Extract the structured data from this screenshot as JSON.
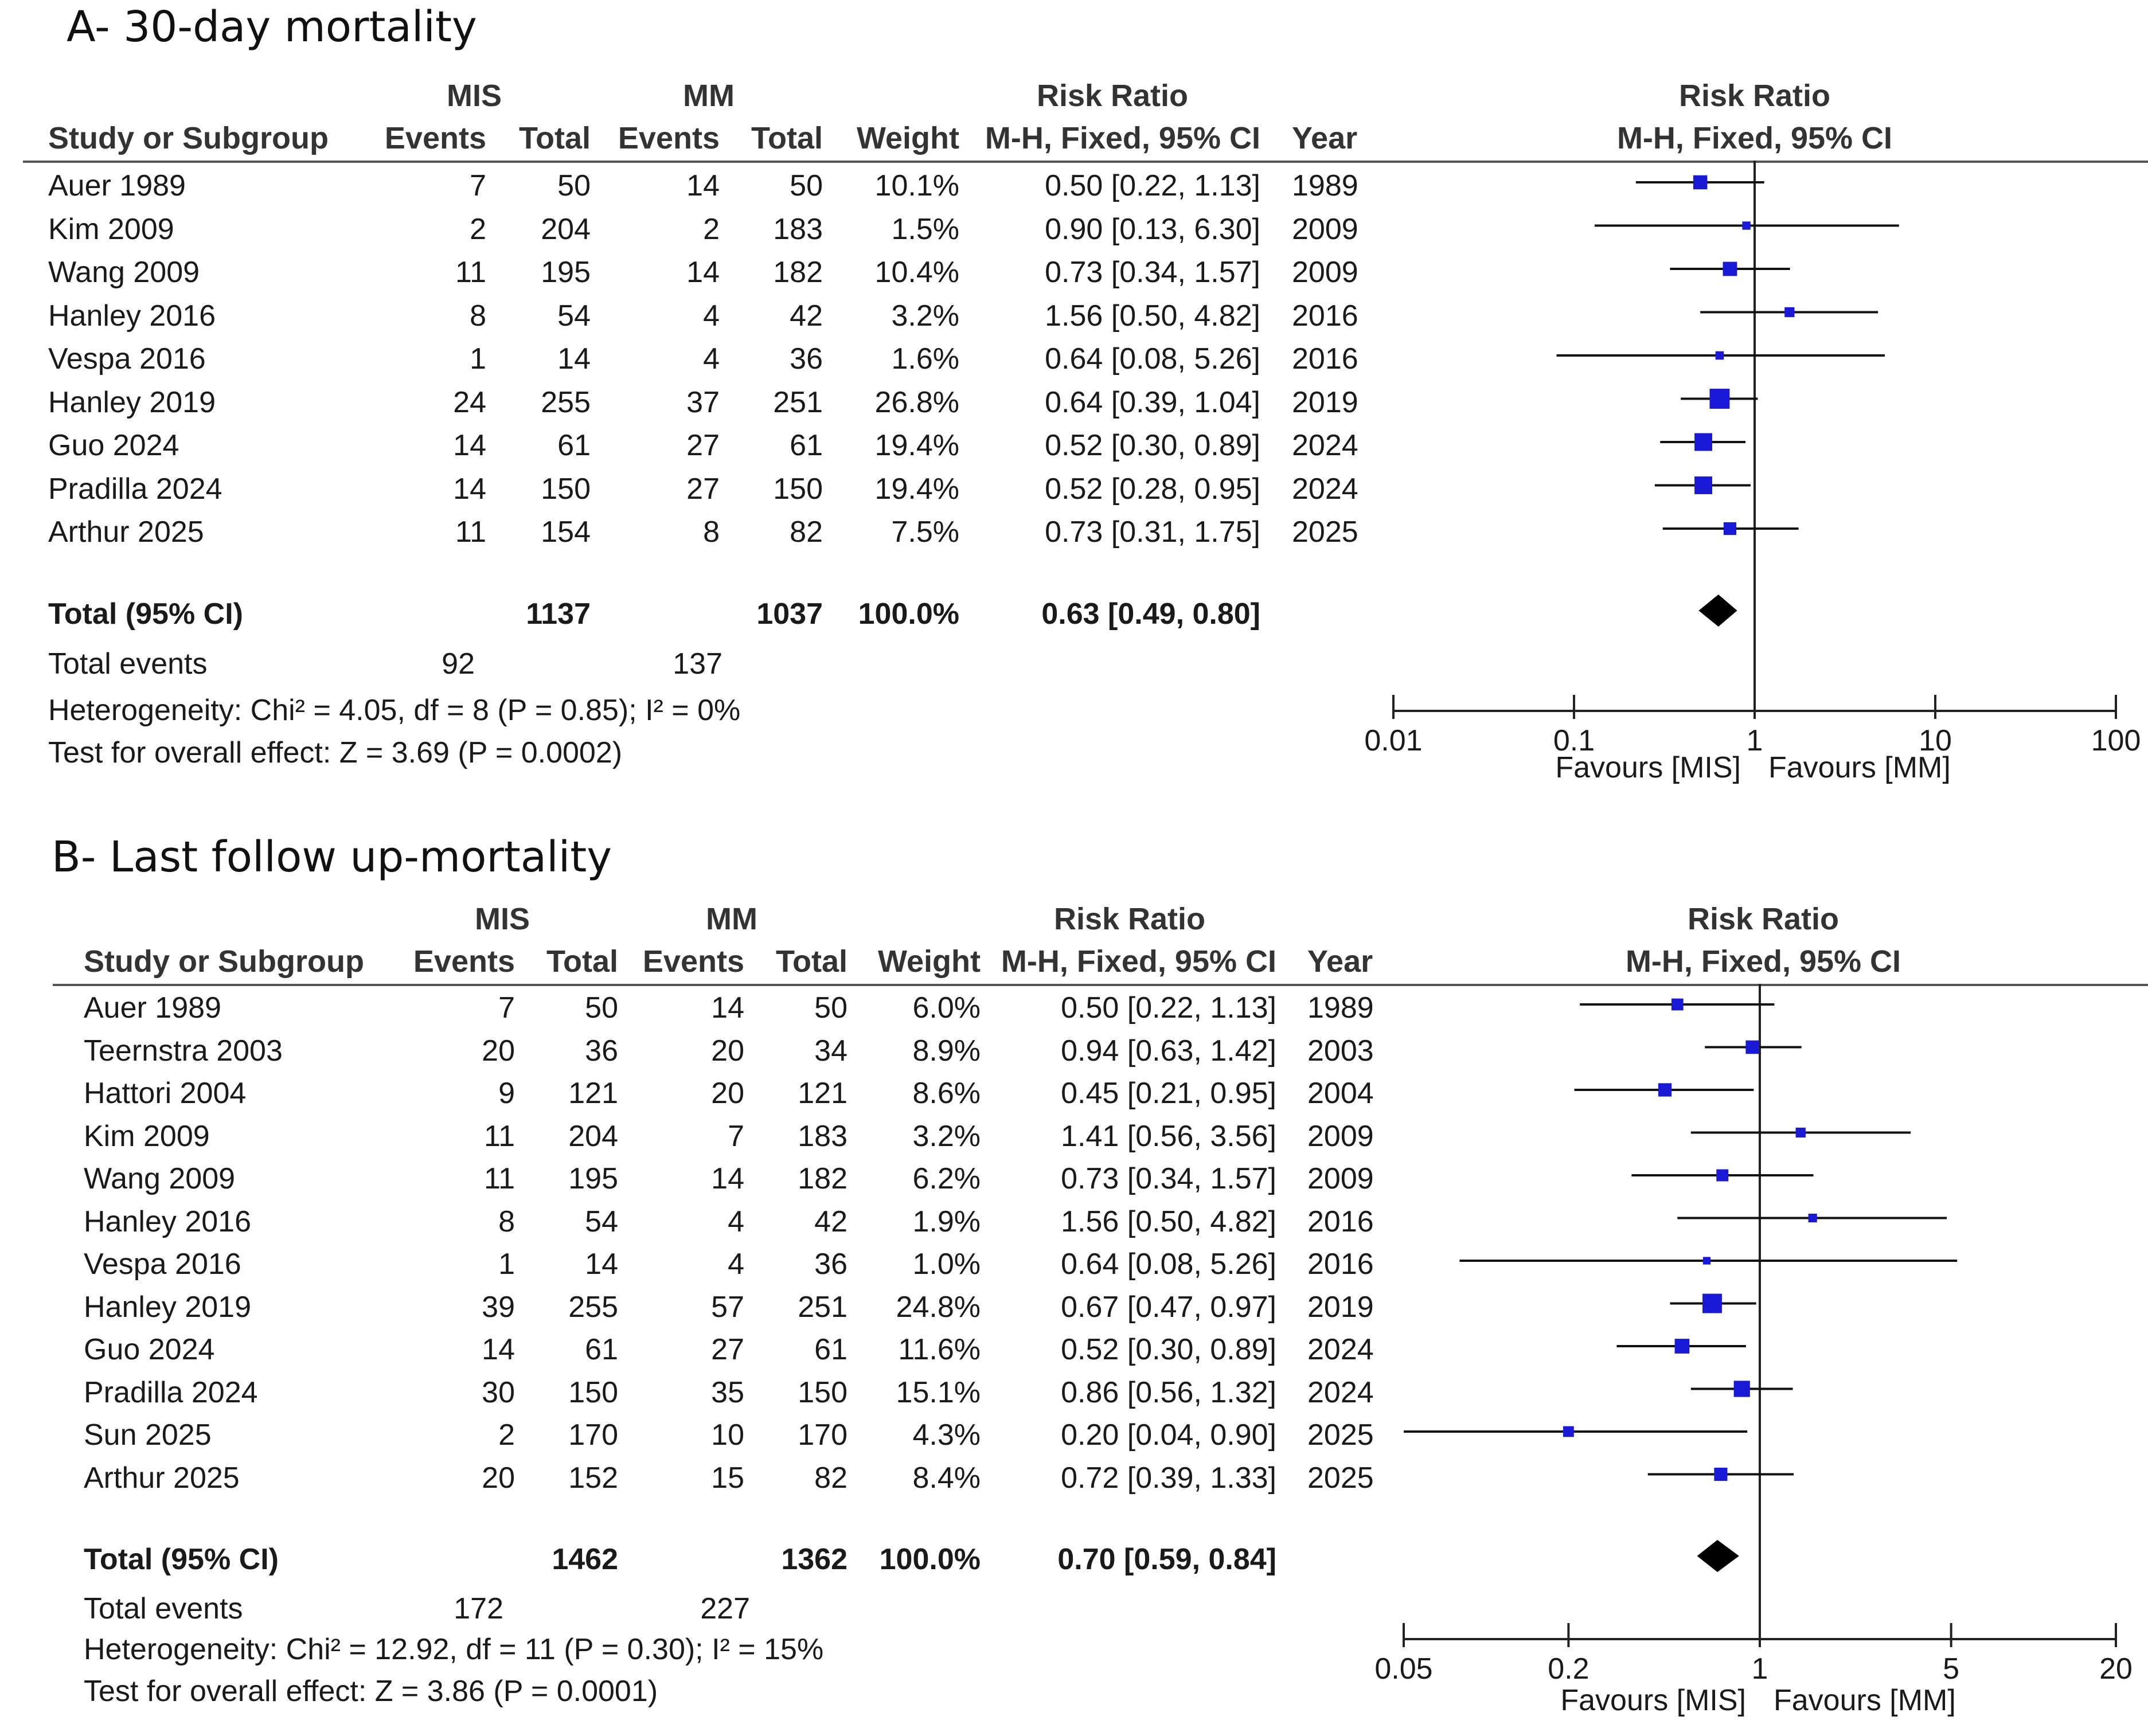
{
  "chart_data": [
    {
      "type": "forest",
      "title": "A- 30-day mortality",
      "group1_label": "MIS",
      "group2_label": "MM",
      "columns": {
        "study": "Study or Subgroup",
        "events": "Events",
        "total": "Total",
        "weight": "Weight",
        "rr_header": "Risk Ratio",
        "rr_sub": "M-H, Fixed, 95% CI",
        "year": "Year"
      },
      "plot_header": "Risk Ratio",
      "plot_subheader": "M-H, Fixed, 95% CI",
      "studies": [
        {
          "name": "Auer 1989",
          "e1": "7",
          "n1": "50",
          "e2": "14",
          "n2": "50",
          "weight": "10.1%",
          "ci_text": "0.50 [0.22, 1.13]",
          "year": "1989",
          "rr": 0.5,
          "lo": 0.22,
          "hi": 1.13,
          "w": 10.1
        },
        {
          "name": "Kim 2009",
          "e1": "2",
          "n1": "204",
          "e2": "2",
          "n2": "183",
          "weight": "1.5%",
          "ci_text": "0.90 [0.13, 6.30]",
          "year": "2009",
          "rr": 0.9,
          "lo": 0.13,
          "hi": 6.3,
          "w": 1.5
        },
        {
          "name": "Wang 2009",
          "e1": "11",
          "n1": "195",
          "e2": "14",
          "n2": "182",
          "weight": "10.4%",
          "ci_text": "0.73 [0.34, 1.57]",
          "year": "2009",
          "rr": 0.73,
          "lo": 0.34,
          "hi": 1.57,
          "w": 10.4
        },
        {
          "name": "Hanley 2016",
          "e1": "8",
          "n1": "54",
          "e2": "4",
          "n2": "42",
          "weight": "3.2%",
          "ci_text": "1.56 [0.50, 4.82]",
          "year": "2016",
          "rr": 1.56,
          "lo": 0.5,
          "hi": 4.82,
          "w": 3.2
        },
        {
          "name": "Vespa 2016",
          "e1": "1",
          "n1": "14",
          "e2": "4",
          "n2": "36",
          "weight": "1.6%",
          "ci_text": "0.64 [0.08, 5.26]",
          "year": "2016",
          "rr": 0.64,
          "lo": 0.08,
          "hi": 5.26,
          "w": 1.6
        },
        {
          "name": "Hanley 2019",
          "e1": "24",
          "n1": "255",
          "e2": "37",
          "n2": "251",
          "weight": "26.8%",
          "ci_text": "0.64 [0.39, 1.04]",
          "year": "2019",
          "rr": 0.64,
          "lo": 0.39,
          "hi": 1.04,
          "w": 26.8
        },
        {
          "name": "Guo 2024",
          "e1": "14",
          "n1": "61",
          "e2": "27",
          "n2": "61",
          "weight": "19.4%",
          "ci_text": "0.52 [0.30, 0.89]",
          "year": "2024",
          "rr": 0.52,
          "lo": 0.3,
          "hi": 0.89,
          "w": 19.4
        },
        {
          "name": "Pradilla 2024",
          "e1": "14",
          "n1": "150",
          "e2": "27",
          "n2": "150",
          "weight": "19.4%",
          "ci_text": "0.52 [0.28, 0.95]",
          "year": "2024",
          "rr": 0.52,
          "lo": 0.28,
          "hi": 0.95,
          "w": 19.4
        },
        {
          "name": "Arthur 2025",
          "e1": "11",
          "n1": "154",
          "e2": "8",
          "n2": "82",
          "weight": "7.5%",
          "ci_text": "0.73 [0.31, 1.75]",
          "year": "2025",
          "rr": 0.73,
          "lo": 0.31,
          "hi": 1.75,
          "w": 7.5
        }
      ],
      "total": {
        "label": "Total (95% CI)",
        "n1": "1137",
        "n2": "1037",
        "weight": "100.0%",
        "ci_text": "0.63 [0.49, 0.80]",
        "rr": 0.63,
        "lo": 0.49,
        "hi": 0.8
      },
      "total_events": {
        "label": "Total events",
        "e1": "92",
        "e2": "137"
      },
      "heterogeneity": "Heterogeneity: Chi² = 4.05, df = 8 (P = 0.85); I² = 0%",
      "overall_effect": "Test for overall effect: Z = 3.69 (P = 0.0002)",
      "axis": {
        "scale": "log",
        "min": 0.01,
        "max": 100,
        "ticks": [
          0.01,
          0.1,
          1,
          10,
          100
        ],
        "tick_labels": [
          "0.01",
          "0.1",
          "1",
          "10",
          "100"
        ]
      },
      "favours_left": "Favours [MIS]",
      "favours_right": "Favours [MM]",
      "marker_color": "#1a1ad6"
    },
    {
      "type": "forest",
      "title": "B- Last follow up-mortality",
      "group1_label": "MIS",
      "group2_label": "MM",
      "columns": {
        "study": "Study or Subgroup",
        "events": "Events",
        "total": "Total",
        "weight": "Weight",
        "rr_header": "Risk Ratio",
        "rr_sub": "M-H, Fixed, 95% CI",
        "year": "Year"
      },
      "plot_header": "Risk Ratio",
      "plot_subheader": "M-H, Fixed, 95% CI",
      "studies": [
        {
          "name": "Auer 1989",
          "e1": "7",
          "n1": "50",
          "e2": "14",
          "n2": "50",
          "weight": "6.0%",
          "ci_text": "0.50 [0.22, 1.13]",
          "year": "1989",
          "rr": 0.5,
          "lo": 0.22,
          "hi": 1.13,
          "w": 6.0
        },
        {
          "name": "Teernstra 2003",
          "e1": "20",
          "n1": "36",
          "e2": "20",
          "n2": "34",
          "weight": "8.9%",
          "ci_text": "0.94 [0.63, 1.42]",
          "year": "2003",
          "rr": 0.94,
          "lo": 0.63,
          "hi": 1.42,
          "w": 8.9
        },
        {
          "name": "Hattori 2004",
          "e1": "9",
          "n1": "121",
          "e2": "20",
          "n2": "121",
          "weight": "8.6%",
          "ci_text": "0.45 [0.21, 0.95]",
          "year": "2004",
          "rr": 0.45,
          "lo": 0.21,
          "hi": 0.95,
          "w": 8.6
        },
        {
          "name": "Kim 2009",
          "e1": "11",
          "n1": "204",
          "e2": "7",
          "n2": "183",
          "weight": "3.2%",
          "ci_text": "1.41 [0.56, 3.56]",
          "year": "2009",
          "rr": 1.41,
          "lo": 0.56,
          "hi": 3.56,
          "w": 3.2
        },
        {
          "name": "Wang 2009",
          "e1": "11",
          "n1": "195",
          "e2": "14",
          "n2": "182",
          "weight": "6.2%",
          "ci_text": "0.73 [0.34, 1.57]",
          "year": "2009",
          "rr": 0.73,
          "lo": 0.34,
          "hi": 1.57,
          "w": 6.2
        },
        {
          "name": "Hanley 2016",
          "e1": "8",
          "n1": "54",
          "e2": "4",
          "n2": "42",
          "weight": "1.9%",
          "ci_text": "1.56 [0.50, 4.82]",
          "year": "2016",
          "rr": 1.56,
          "lo": 0.5,
          "hi": 4.82,
          "w": 1.9
        },
        {
          "name": "Vespa 2016",
          "e1": "1",
          "n1": "14",
          "e2": "4",
          "n2": "36",
          "weight": "1.0%",
          "ci_text": "0.64 [0.08, 5.26]",
          "year": "2016",
          "rr": 0.64,
          "lo": 0.08,
          "hi": 5.26,
          "w": 1.0
        },
        {
          "name": "Hanley 2019",
          "e1": "39",
          "n1": "255",
          "e2": "57",
          "n2": "251",
          "weight": "24.8%",
          "ci_text": "0.67 [0.47, 0.97]",
          "year": "2019",
          "rr": 0.67,
          "lo": 0.47,
          "hi": 0.97,
          "w": 24.8
        },
        {
          "name": "Guo 2024",
          "e1": "14",
          "n1": "61",
          "e2": "27",
          "n2": "61",
          "weight": "11.6%",
          "ci_text": "0.52 [0.30, 0.89]",
          "year": "2024",
          "rr": 0.52,
          "lo": 0.3,
          "hi": 0.89,
          "w": 11.6
        },
        {
          "name": "Pradilla 2024",
          "e1": "30",
          "n1": "150",
          "e2": "35",
          "n2": "150",
          "weight": "15.1%",
          "ci_text": "0.86 [0.56, 1.32]",
          "year": "2024",
          "rr": 0.86,
          "lo": 0.56,
          "hi": 1.32,
          "w": 15.1
        },
        {
          "name": "Sun 2025",
          "e1": "2",
          "n1": "170",
          "e2": "10",
          "n2": "170",
          "weight": "4.3%",
          "ci_text": "0.20 [0.04, 0.90]",
          "year": "2025",
          "rr": 0.2,
          "lo": 0.04,
          "hi": 0.9,
          "w": 4.3
        },
        {
          "name": "Arthur 2025",
          "e1": "20",
          "n1": "152",
          "e2": "15",
          "n2": "82",
          "weight": "8.4%",
          "ci_text": "0.72 [0.39, 1.33]",
          "year": "2025",
          "rr": 0.72,
          "lo": 0.39,
          "hi": 1.33,
          "w": 8.4
        }
      ],
      "total": {
        "label": "Total (95% CI)",
        "n1": "1462",
        "n2": "1362",
        "weight": "100.0%",
        "ci_text": "0.70 [0.59, 0.84]",
        "rr": 0.7,
        "lo": 0.59,
        "hi": 0.84
      },
      "total_events": {
        "label": "Total events",
        "e1": "172",
        "e2": "227"
      },
      "heterogeneity": "Heterogeneity: Chi² = 12.92, df = 11 (P = 0.30); I² = 15%",
      "overall_effect": "Test for overall effect: Z = 3.86 (P = 0.0001)",
      "axis": {
        "scale": "log",
        "min": 0.05,
        "max": 20,
        "ticks": [
          0.05,
          0.2,
          1,
          5,
          20
        ],
        "tick_labels": [
          "0.05",
          "0.2",
          "1",
          "5",
          "20"
        ]
      },
      "favours_left": "Favours [MIS]",
      "favours_right": "Favours [MM]",
      "marker_color": "#1a1ad6"
    }
  ]
}
